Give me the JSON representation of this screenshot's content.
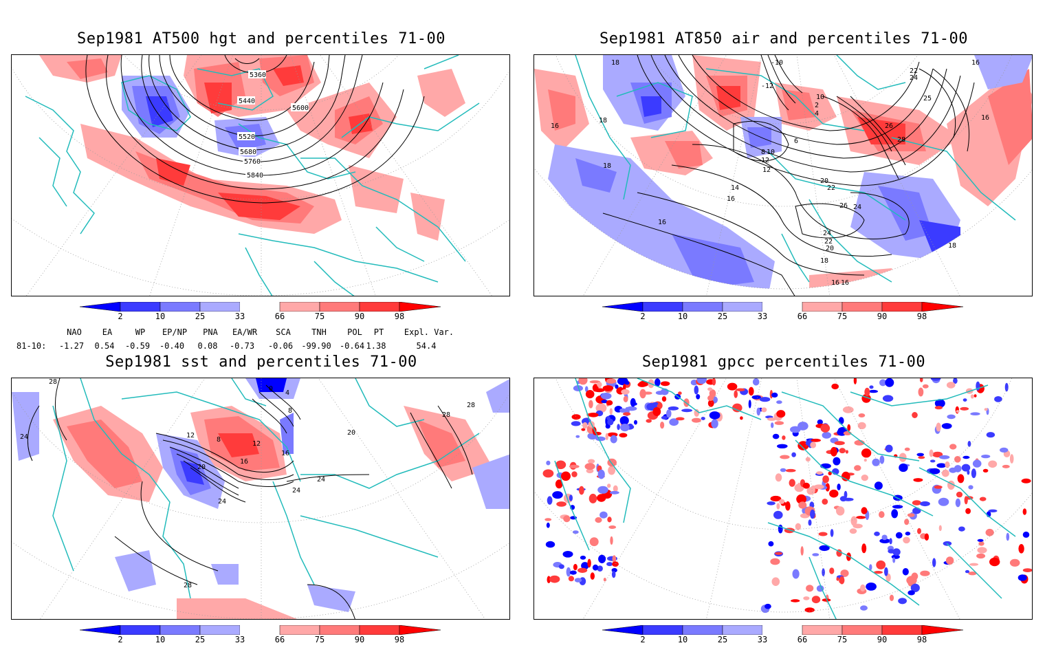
{
  "panels": {
    "top_left": {
      "title": "Sep1981 AT500 hgt and percentiles 71-00",
      "contour_labels": [
        "5360",
        "5440",
        "5520",
        "5600",
        "5680",
        "5760",
        "5840"
      ]
    },
    "top_right": {
      "title": "Sep1981 AT850 air and percentiles 71-00",
      "contour_labels": [
        "18",
        "16",
        "18",
        "18",
        "16",
        "10",
        "12",
        "10",
        "8",
        "6",
        "12",
        "14",
        "16",
        "20",
        "22",
        "26",
        "24",
        "24",
        "22",
        "20",
        "18",
        "16",
        "16",
        "28",
        "26",
        "24",
        "22",
        "25",
        "16",
        "16",
        "18",
        "-10",
        "-12",
        "4",
        "2"
      ]
    },
    "bottom_left": {
      "title": "Sep1981 sst and percentiles 71-00",
      "contour_labels": [
        "28",
        "24",
        "12",
        "8",
        "12",
        "16",
        "20",
        "24",
        "24",
        "24",
        "20",
        "28",
        "28",
        "0",
        "4",
        "8",
        "16",
        "28"
      ]
    },
    "bottom_right": {
      "title": "Sep1981 gpcc percentiles 71-00"
    }
  },
  "colorbar": {
    "labels": [
      "2",
      "10",
      "25",
      "33",
      "66",
      "75",
      "90",
      "98"
    ],
    "colors": {
      "blue_strong": "#0000ff",
      "blue_mid": "#3b3bff",
      "blue_light": "#7a7aff",
      "blue_pale": "#aaaaff",
      "red_pale": "#ffa8a8",
      "red_light": "#ff7a7a",
      "red_mid": "#ff3b3b",
      "red_strong": "#ff0000"
    }
  },
  "indices": {
    "row_label": "81-10:",
    "columns": [
      {
        "name": "NAO",
        "value": "-1.27"
      },
      {
        "name": "EA",
        "value": "0.54"
      },
      {
        "name": "WP",
        "value": "-0.59"
      },
      {
        "name": "EP/NP",
        "value": "-0.40"
      },
      {
        "name": "PNA",
        "value": "0.08"
      },
      {
        "name": "EA/WR",
        "value": "-0.73"
      },
      {
        "name": "SCA",
        "value": "-0.06"
      },
      {
        "name": "TNH",
        "value": "-99.90"
      },
      {
        "name": "POL",
        "value": "-0.64"
      },
      {
        "name": "PT",
        "value": "1.38"
      },
      {
        "name": "Expl. Var.",
        "value": "54.4"
      }
    ]
  },
  "map_colors": {
    "coast": "#22bbbb",
    "grid": "#999999",
    "contour": "#000000"
  }
}
